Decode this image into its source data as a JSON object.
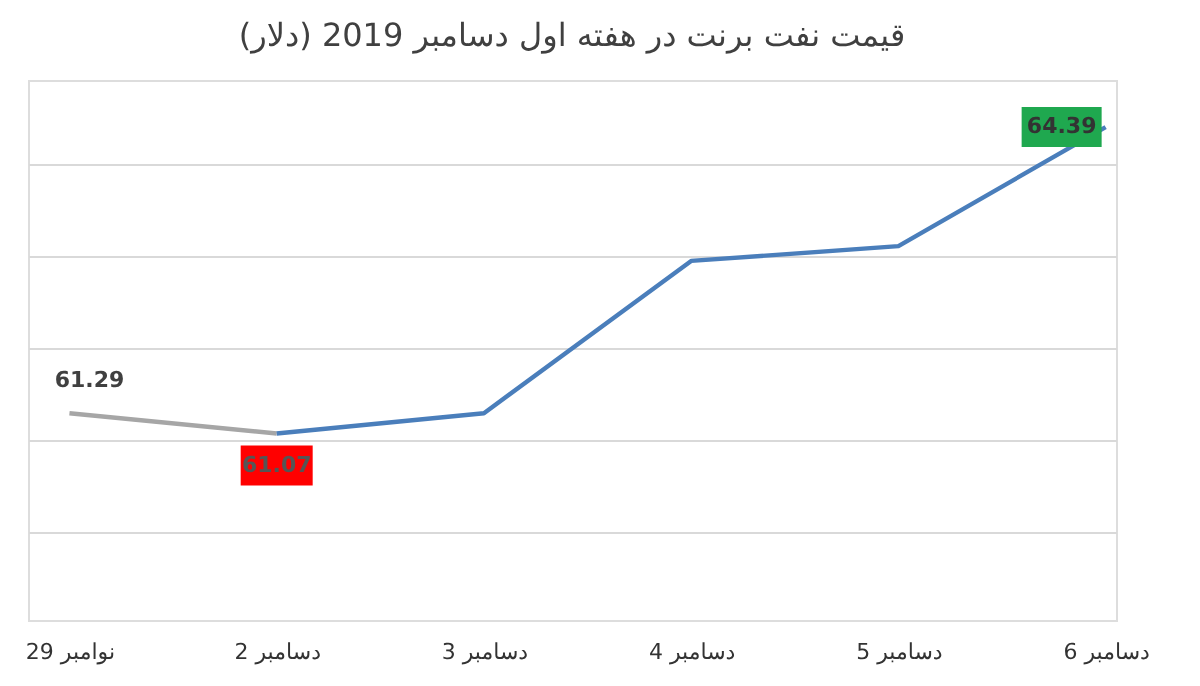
{
  "chart_data": {
    "type": "line",
    "title": "قیمت نفت برنت در هفته اول دسامبر 2019 (دلار)",
    "categories": [
      "29 نوامبر",
      "2 دسامبر",
      "3 دسامبر",
      "4 دسامبر",
      "5 دسامبر",
      "6 دسامبر"
    ],
    "series": [
      {
        "color": "#a6a6a6",
        "values": [
          61.29,
          61.07,
          null,
          null,
          null,
          null
        ],
        "value_labels": [
          "61.29",
          null,
          null,
          null,
          null,
          null
        ]
      },
      {
        "color": "#4a7ebb",
        "values": [
          null,
          61.07,
          61.29,
          62.94,
          63.1,
          64.39
        ],
        "value_labels": [
          null,
          "61.07",
          null,
          null,
          null,
          "64.39"
        ]
      }
    ],
    "ylim": [
      59.05,
      64.9
    ],
    "yticks": [
      {
        "value": 60,
        "label": null
      },
      {
        "value": 61,
        "label": null
      },
      {
        "value": 62,
        "label": null
      },
      {
        "value": 63,
        "label": null
      },
      {
        "value": 64,
        "label": null
      }
    ],
    "grid": "y",
    "tick_labels": "x",
    "marker": "none",
    "line_style": "solid"
  }
}
